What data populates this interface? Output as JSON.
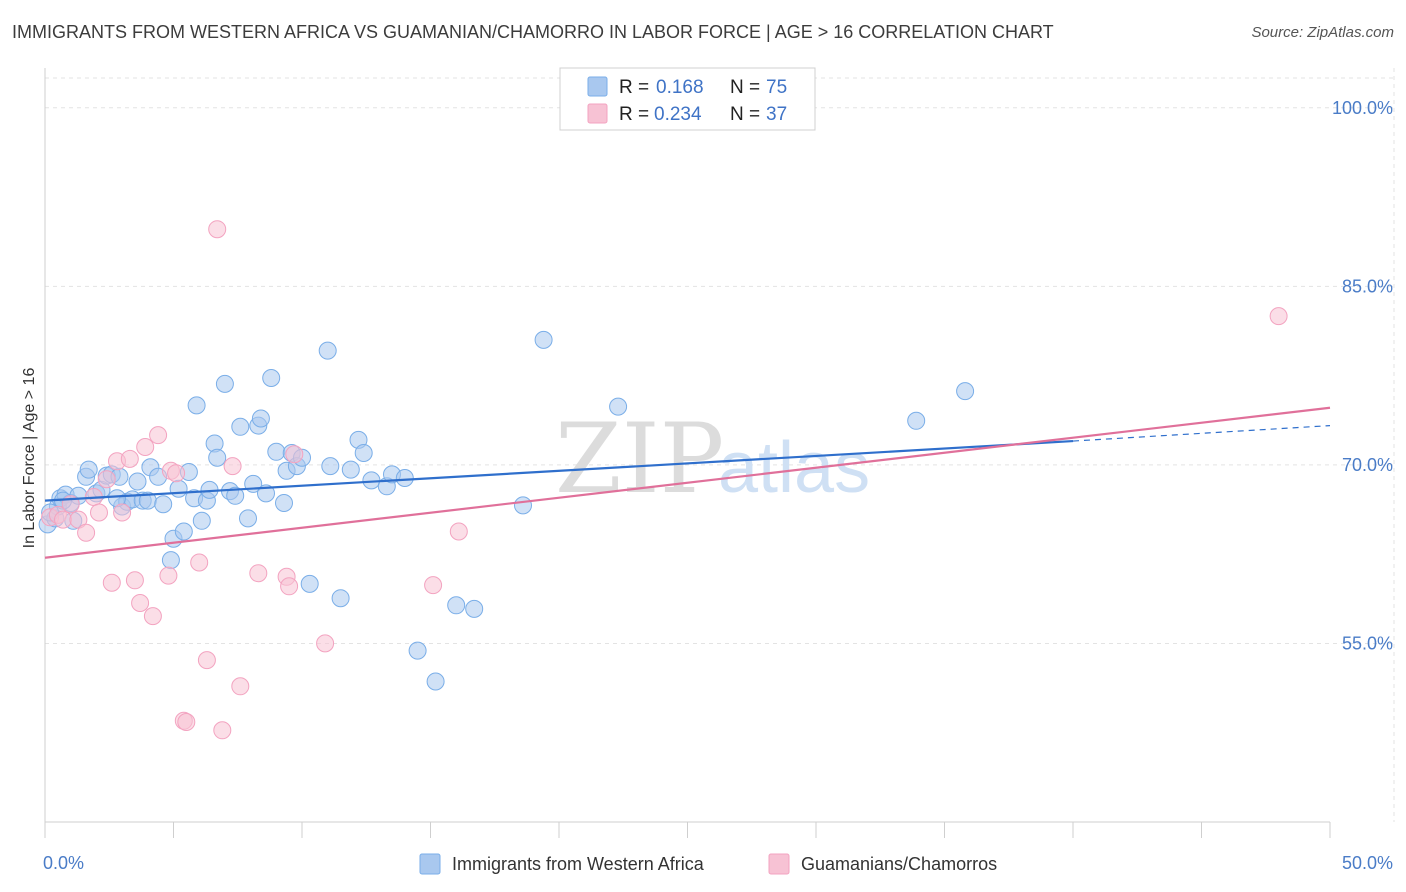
{
  "header": {
    "title": "IMMIGRANTS FROM WESTERN AFRICA VS GUAMANIAN/CHAMORRO IN LABOR FORCE | AGE > 16 CORRELATION CHART",
    "source": "Source: ZipAtlas.com"
  },
  "watermark": {
    "zip": "ZIP",
    "atlas": "atlas"
  },
  "legend": {
    "r_label": "R =",
    "n_label": "N =",
    "rows": [
      {
        "r": "0.168",
        "n": "75"
      },
      {
        "r": "0.234",
        "n": "37"
      }
    ]
  },
  "chart_data": {
    "type": "scatter",
    "title": "IMMIGRANTS FROM WESTERN AFRICA VS GUAMANIAN/CHAMORRO IN LABOR FORCE | AGE > 16 CORRELATION CHART",
    "ylabel": "In Labor Force | Age > 16",
    "xlabel": "",
    "xlim": [
      0,
      50
    ],
    "ylim": [
      40,
      102.5
    ],
    "x_tick_labels": [
      "0.0%",
      "50.0%"
    ],
    "y_ticks": [
      55,
      70,
      85,
      100
    ],
    "y_tick_labels": [
      "55.0%",
      "70.0%",
      "85.0%",
      "100.0%"
    ],
    "grid": true,
    "legend_position": "top-center",
    "series": [
      {
        "name": "Immigrants from Western Africa",
        "color": "#7aaee8",
        "line_color": "#2f6fcc",
        "trend": {
          "x": [
            0,
            40
          ],
          "y": [
            67.0,
            72.0
          ],
          "dashed_to": [
            50,
            73.3
          ]
        },
        "points": [
          [
            0.1,
            65.0
          ],
          [
            0.4,
            65.5
          ],
          [
            0.5,
            66.5
          ],
          [
            0.6,
            67.2
          ],
          [
            0.8,
            67.5
          ],
          [
            1.0,
            66.8
          ],
          [
            1.1,
            65.3
          ],
          [
            1.3,
            67.4
          ],
          [
            1.6,
            69.0
          ],
          [
            1.7,
            69.6
          ],
          [
            2.0,
            67.6
          ],
          [
            2.2,
            67.9
          ],
          [
            2.4,
            69.1
          ],
          [
            2.6,
            69.2
          ],
          [
            2.9,
            69.0
          ],
          [
            3.0,
            66.5
          ],
          [
            3.2,
            66.9
          ],
          [
            3.4,
            67.1
          ],
          [
            3.6,
            68.6
          ],
          [
            3.8,
            67.0
          ],
          [
            4.0,
            67.0
          ],
          [
            4.1,
            69.8
          ],
          [
            4.4,
            69.0
          ],
          [
            4.6,
            66.7
          ],
          [
            5.0,
            63.8
          ],
          [
            5.2,
            68.0
          ],
          [
            5.4,
            64.4
          ],
          [
            5.6,
            69.4
          ],
          [
            5.8,
            67.2
          ],
          [
            5.9,
            75.0
          ],
          [
            6.1,
            65.3
          ],
          [
            6.3,
            67.0
          ],
          [
            6.4,
            67.9
          ],
          [
            6.6,
            71.8
          ],
          [
            6.7,
            70.6
          ],
          [
            7.0,
            76.8
          ],
          [
            7.2,
            67.8
          ],
          [
            7.4,
            67.4
          ],
          [
            7.6,
            73.2
          ],
          [
            7.9,
            65.5
          ],
          [
            8.1,
            68.4
          ],
          [
            8.3,
            73.3
          ],
          [
            8.4,
            73.9
          ],
          [
            8.6,
            67.6
          ],
          [
            8.8,
            77.3
          ],
          [
            9.0,
            71.1
          ],
          [
            9.3,
            66.8
          ],
          [
            9.4,
            69.5
          ],
          [
            9.6,
            71.0
          ],
          [
            9.8,
            69.9
          ],
          [
            10.0,
            70.6
          ],
          [
            10.3,
            60.0
          ],
          [
            11.0,
            79.6
          ],
          [
            11.1,
            69.9
          ],
          [
            11.5,
            58.8
          ],
          [
            11.9,
            69.6
          ],
          [
            12.2,
            72.1
          ],
          [
            12.4,
            71.0
          ],
          [
            12.7,
            68.7
          ],
          [
            13.3,
            68.2
          ],
          [
            13.5,
            69.2
          ],
          [
            14.0,
            68.9
          ],
          [
            14.5,
            54.4
          ],
          [
            15.2,
            51.8
          ],
          [
            16.0,
            58.2
          ],
          [
            16.7,
            57.9
          ],
          [
            18.6,
            66.6
          ],
          [
            19.4,
            80.5
          ],
          [
            22.3,
            74.9
          ],
          [
            33.9,
            73.7
          ],
          [
            35.8,
            76.2
          ],
          [
            0.2,
            66.0
          ],
          [
            0.7,
            67.0
          ],
          [
            2.8,
            67.2
          ],
          [
            4.9,
            62.0
          ]
        ]
      },
      {
        "name": "Guamanians/Chamorros",
        "color": "#f3a3c0",
        "line_color": "#e0709a",
        "trend": {
          "x": [
            0,
            50
          ],
          "y": [
            62.2,
            74.8
          ]
        },
        "points": [
          [
            0.2,
            65.6
          ],
          [
            0.5,
            65.8
          ],
          [
            0.7,
            65.4
          ],
          [
            1.0,
            66.7
          ],
          [
            1.3,
            65.4
          ],
          [
            1.6,
            64.3
          ],
          [
            1.9,
            67.3
          ],
          [
            2.1,
            66.0
          ],
          [
            2.4,
            68.8
          ],
          [
            2.6,
            60.1
          ],
          [
            2.8,
            70.3
          ],
          [
            3.0,
            66.0
          ],
          [
            3.3,
            70.5
          ],
          [
            3.5,
            60.3
          ],
          [
            3.7,
            58.4
          ],
          [
            3.9,
            71.5
          ],
          [
            4.2,
            57.3
          ],
          [
            4.4,
            72.5
          ],
          [
            4.9,
            69.5
          ],
          [
            4.8,
            60.7
          ],
          [
            5.1,
            69.3
          ],
          [
            5.4,
            48.5
          ],
          [
            5.5,
            48.4
          ],
          [
            6.0,
            61.8
          ],
          [
            6.3,
            53.6
          ],
          [
            6.7,
            89.8
          ],
          [
            6.9,
            47.7
          ],
          [
            7.3,
            69.9
          ],
          [
            7.6,
            51.4
          ],
          [
            8.3,
            60.9
          ],
          [
            9.4,
            60.6
          ],
          [
            9.5,
            59.8
          ],
          [
            9.7,
            70.9
          ],
          [
            10.9,
            55.0
          ],
          [
            15.1,
            59.9
          ],
          [
            16.1,
            64.4
          ],
          [
            48.0,
            82.5
          ]
        ]
      }
    ]
  },
  "bottom_legend": [
    {
      "label": "Immigrants from Western Africa"
    },
    {
      "label": "Guamanians/Chamorros"
    }
  ],
  "colors": {
    "blue_fill": "#a9c8ef",
    "blue_stroke": "#7aaee8",
    "pink_fill": "#f7c2d4",
    "pink_stroke": "#f3a3c0",
    "grid": "#e3e3e3",
    "tick_text": "#4a7cc7"
  }
}
